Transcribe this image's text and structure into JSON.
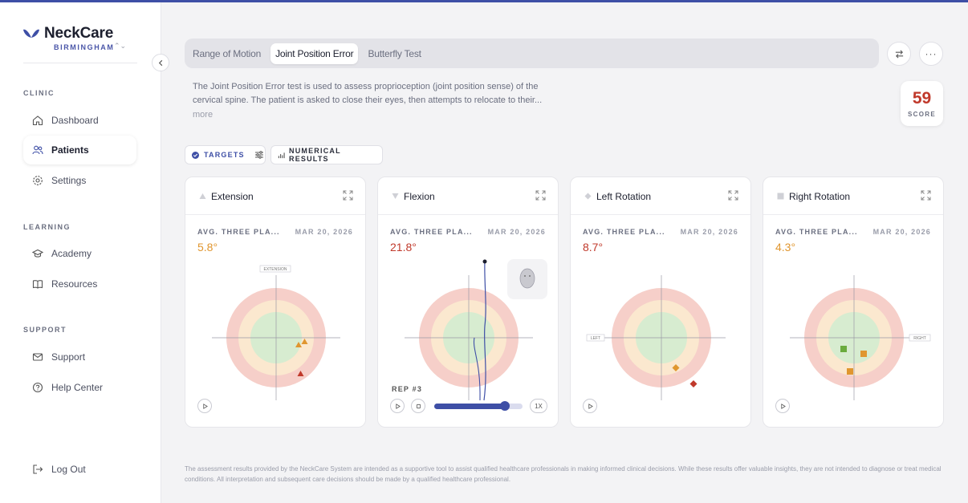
{
  "brand": {
    "name": "NeckCare",
    "location": "BIRMINGHAM",
    "color": "#3e4fa6"
  },
  "sidebar": {
    "sections": [
      {
        "label": "CLINIC"
      },
      {
        "label": "LEARNING"
      },
      {
        "label": "SUPPORT"
      }
    ],
    "items": [
      {
        "label": "Dashboard",
        "icon": "home-icon"
      },
      {
        "label": "Patients",
        "icon": "users-icon",
        "active": true
      },
      {
        "label": "Settings",
        "icon": "gear-icon"
      },
      {
        "label": "Academy",
        "icon": "graduation-cap-icon"
      },
      {
        "label": "Resources",
        "icon": "book-icon"
      },
      {
        "label": "Support",
        "icon": "mail-icon"
      },
      {
        "label": "Help Center",
        "icon": "help-circle-icon"
      }
    ],
    "logout": "Log Out"
  },
  "tabs": [
    {
      "label": "Range of Motion"
    },
    {
      "label": "Joint Position Error",
      "active": true
    },
    {
      "label": "Butterfly Test"
    }
  ],
  "description": "The Joint Position Error test is used to assess proprioception (joint position sense) of the cervical spine. The patient is asked to close their eyes, then attempts to relocate to their...",
  "more_label": "more",
  "score": {
    "value": "59",
    "label": "SCORE",
    "color": "#c0392b"
  },
  "toolbar": {
    "targets": "TARGETS",
    "numerical": "NUMERICAL RESULTS"
  },
  "cards": [
    {
      "title": "Extension",
      "avg_label": "AVG. THREE PLA...",
      "date": "MAR 20, 2026",
      "value": "5.8°",
      "value_color": "#e0962f",
      "tag": "EXTENSION"
    },
    {
      "title": "Flexion",
      "avg_label": "AVG. THREE PLA...",
      "date": "MAR 20, 2026",
      "value": "21.8°",
      "value_color": "#c0392b",
      "rep": "REP #3",
      "speed": "1X",
      "playback_progress": 0.8
    },
    {
      "title": "Left Rotation",
      "avg_label": "AVG. THREE PLA...",
      "date": "MAR 20, 2026",
      "value": "8.7°",
      "value_color": "#c0392b",
      "tag": "LEFT"
    },
    {
      "title": "Right Rotation",
      "avg_label": "AVG. THREE PLA...",
      "date": "MAR 20, 2026",
      "value": "4.3°",
      "value_color": "#e0962f",
      "tag": "RIGHT"
    }
  ],
  "footer": "The assessment results provided by the NeckCare System are intended as a supportive tool to assist qualified healthcare professionals in making informed clinical decisions. While these results offer valuable insights, they are not intended to diagnose or treat medical conditions. All interpretation and subsequent care decisions should be made by a qualified healthcare professional."
}
